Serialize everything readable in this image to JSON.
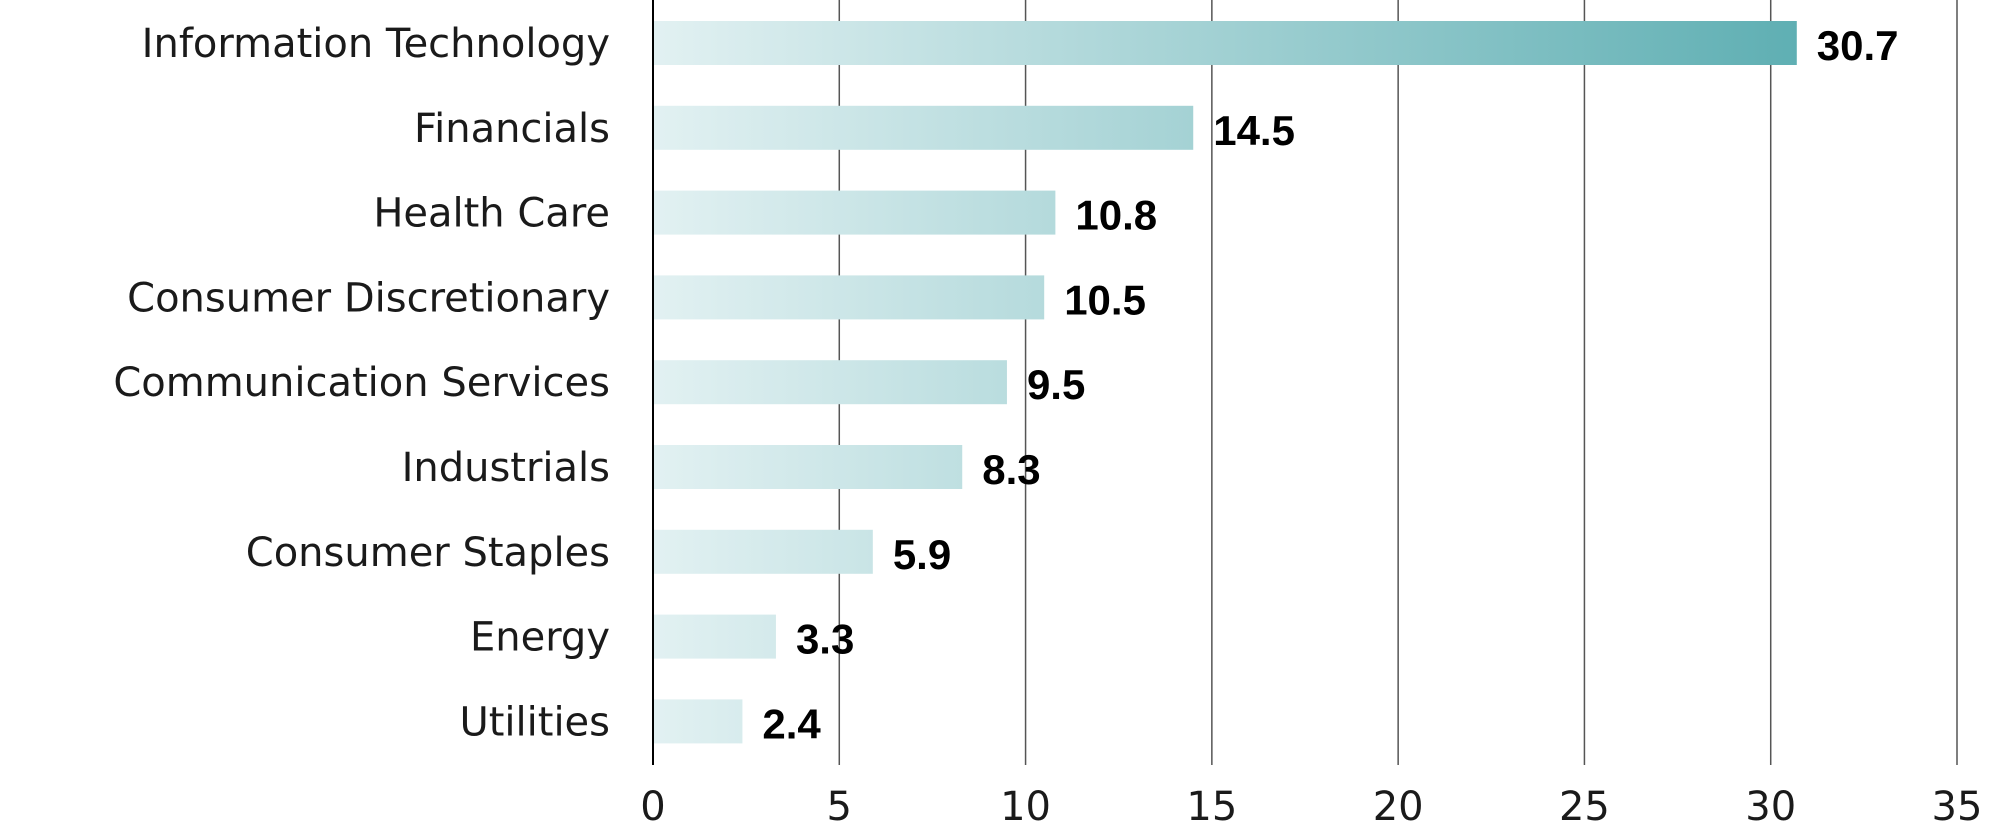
{
  "chart_data": {
    "type": "bar",
    "orientation": "horizontal",
    "categories": [
      "Information Technology",
      "Financials",
      "Health Care",
      "Consumer Discretionary",
      "Communication Services",
      "Industrials",
      "Consumer Staples",
      "Energy",
      "Utilities"
    ],
    "values": [
      30.7,
      14.5,
      10.8,
      10.5,
      9.5,
      8.3,
      5.9,
      3.3,
      2.4
    ],
    "value_labels": [
      "30.7",
      "14.5",
      "10.8",
      "10.5",
      "9.5",
      "8.3",
      "5.9",
      "3.3",
      "2.4"
    ],
    "xlim": [
      0,
      35
    ],
    "xticks": [
      0,
      5,
      10,
      15,
      20,
      25,
      30,
      35
    ],
    "tick_labels": [
      "0",
      "5",
      "10",
      "15",
      "20",
      "25",
      "30",
      "35"
    ],
    "grid": "vertical",
    "title": "",
    "xlabel": "",
    "ylabel": "",
    "colors": {
      "bar_start": "#e2f1f2",
      "bar_end": "#5fafb3",
      "grid": "#555555",
      "text": "#1a1a1a"
    }
  }
}
